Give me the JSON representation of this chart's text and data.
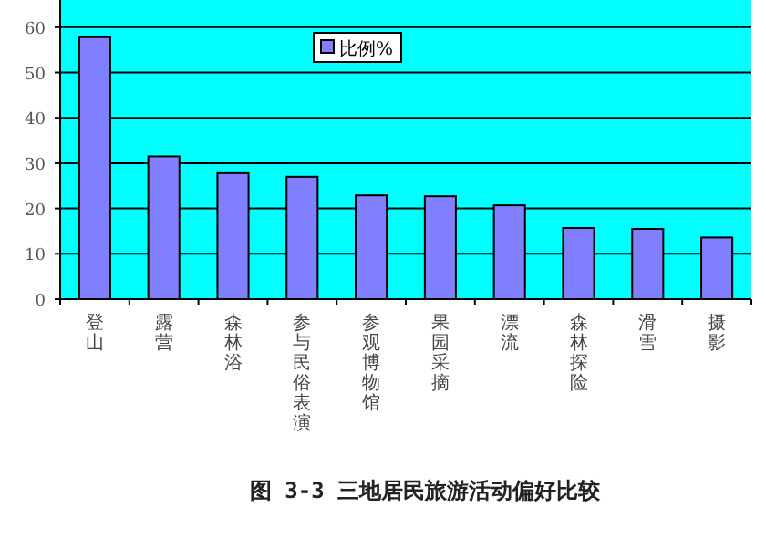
{
  "chart_data": {
    "type": "bar",
    "title": "图 3-3 三地居民旅游活动偏好比较",
    "categories": [
      "登山",
      "露营",
      "森林浴",
      "参与民俗表演",
      "参观博物馆",
      "果园采摘",
      "漂流",
      "森林探险",
      "滑雪",
      "摄影"
    ],
    "series": [
      {
        "name": "比例%",
        "color": "#8080ff",
        "values": [
          57.8,
          31.5,
          27.8,
          27,
          22.9,
          22.7,
          20.7,
          15.7,
          15.5,
          13.6
        ]
      }
    ],
    "ylim": [
      0,
      66
    ],
    "yticks": [
      0,
      10,
      20,
      30,
      40,
      50,
      60
    ],
    "grid": "y",
    "legend": "top"
  }
}
